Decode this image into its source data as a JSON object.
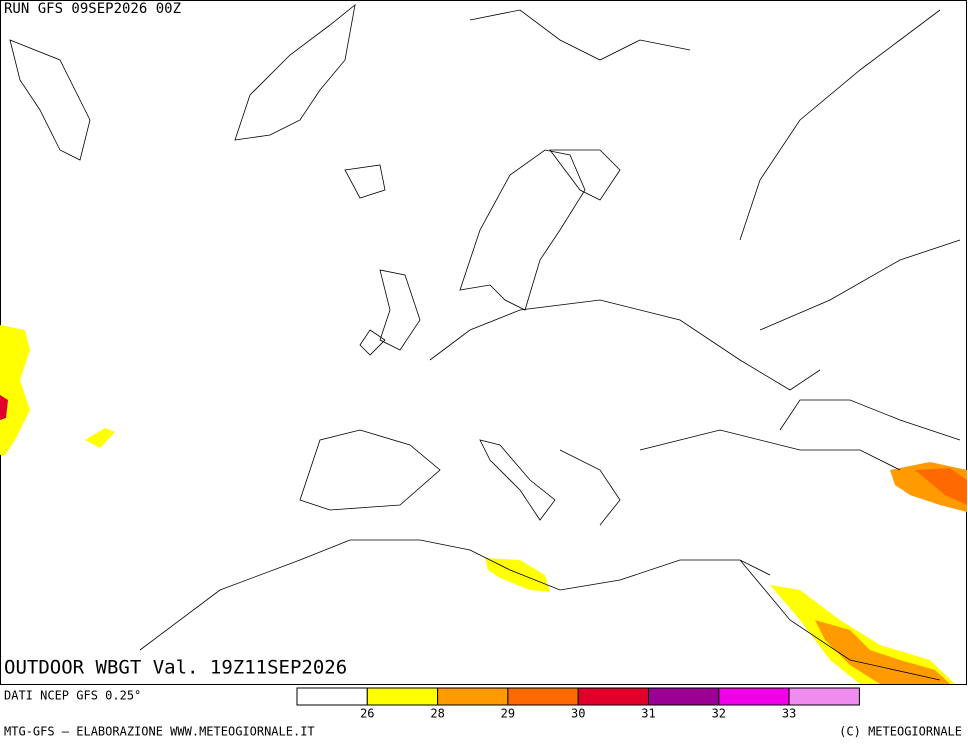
{
  "header": {
    "run": "RUN GFS 09SEP2026 00Z"
  },
  "map": {
    "title": "OUTDOOR WBGT Val. 19Z11SEP2026"
  },
  "footer": {
    "source": "DATI NCEP GFS 0.25°",
    "credits": "MTG-GFS — ELABORAZIONE WWW.METEOGIORNALE.IT",
    "copyright": "(C) METEOGIORNALE"
  },
  "legend": {
    "colors": [
      "#ffffff",
      "#ffff00",
      "#ff9a00",
      "#ff6a00",
      "#e0002a",
      "#9a0094",
      "#f000e8",
      "#f08cf0"
    ],
    "ticks": [
      26,
      28,
      29,
      30,
      31,
      32,
      33
    ]
  }
}
